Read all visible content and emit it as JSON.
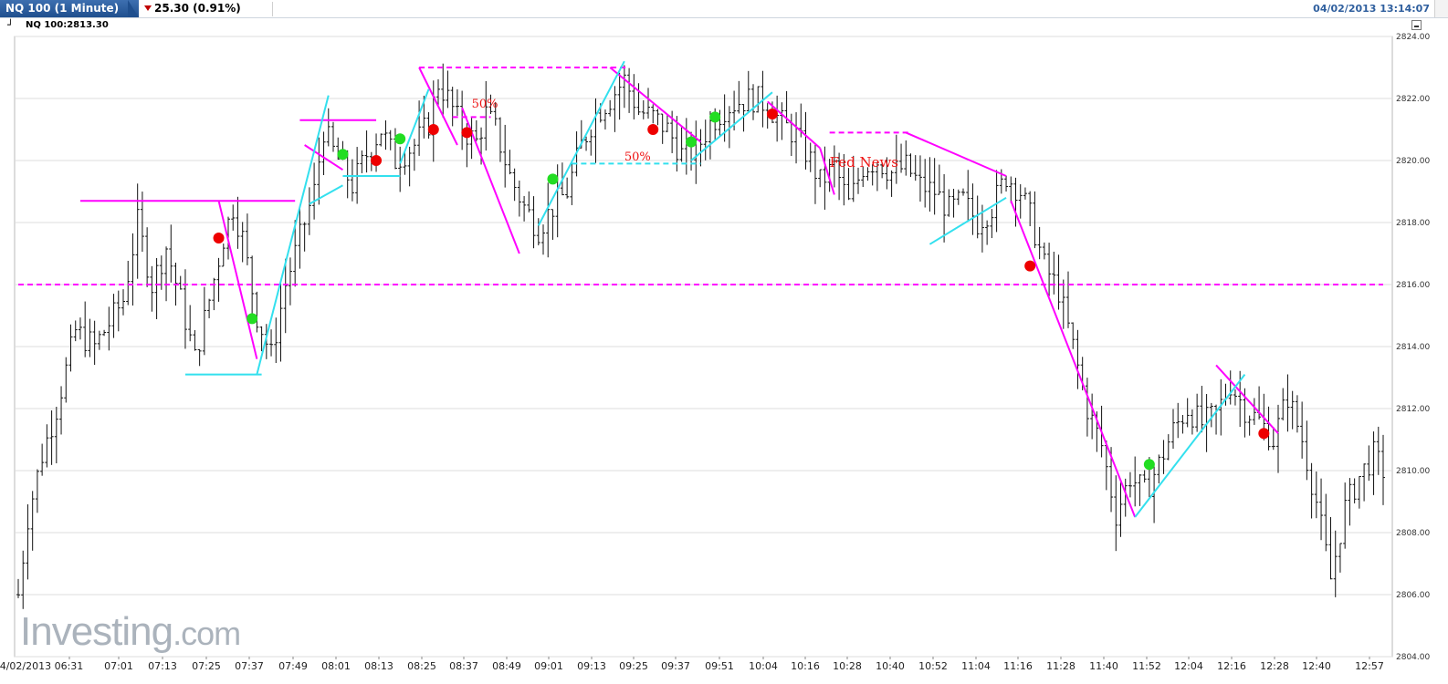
{
  "header": {
    "symbol_tab": "NQ 100 (1 Minute)",
    "change_text": "25.30 (0.91%)",
    "change_direction_color": "#c00000",
    "timestamp": "04/02/2013 13:14:07"
  },
  "subheader": {
    "quote_label": "NQ 100:2813.30"
  },
  "logo": {
    "word": "Investing",
    "suffix": ".com"
  },
  "chart_data": {
    "type": "ohlc",
    "instrument": "NQ 100",
    "interval": "1 Minute",
    "ylim": [
      2804,
      2824
    ],
    "y_ticks": [
      "2804.00",
      "2806.00",
      "2808.00",
      "2810.00",
      "2812.00",
      "2814.00",
      "2816.00",
      "2818.00",
      "2820.00",
      "2822.00",
      "2824.00"
    ],
    "x_tick_labels": [
      "04/02/2013 06:31",
      "07:01",
      "07:13",
      "07:25",
      "07:37",
      "07:49",
      "08:01",
      "08:13",
      "08:25",
      "08:37",
      "08:49",
      "09:01",
      "09:13",
      "09:25",
      "09:37",
      "09:51",
      "10:04",
      "10:16",
      "10:28",
      "10:40",
      "10:52",
      "11:04",
      "11:16",
      "11:28",
      "11:40",
      "11:52",
      "12:04",
      "12:16",
      "12:28",
      "12:40",
      "12:57"
    ],
    "grid": true,
    "price_path": [
      {
        "t": 0,
        "p": 2806.0
      },
      {
        "t": 2,
        "p": 2808.5
      },
      {
        "t": 5,
        "p": 2810.5
      },
      {
        "t": 8,
        "p": 2812.0
      },
      {
        "t": 12,
        "p": 2814.5
      },
      {
        "t": 16,
        "p": 2814.0
      },
      {
        "t": 22,
        "p": 2815.5
      },
      {
        "t": 25,
        "p": 2818.0
      },
      {
        "t": 28,
        "p": 2816.0
      },
      {
        "t": 31,
        "p": 2817.2
      },
      {
        "t": 34,
        "p": 2815.5
      },
      {
        "t": 37,
        "p": 2813.6
      },
      {
        "t": 40,
        "p": 2815.5
      },
      {
        "t": 43,
        "p": 2817.5
      },
      {
        "t": 45,
        "p": 2818.5
      },
      {
        "t": 47,
        "p": 2817.5
      },
      {
        "t": 50,
        "p": 2815.0
      },
      {
        "t": 53,
        "p": 2813.7
      },
      {
        "t": 56,
        "p": 2816.0
      },
      {
        "t": 59,
        "p": 2817.5
      },
      {
        "t": 62,
        "p": 2819.0
      },
      {
        "t": 64,
        "p": 2821.0
      },
      {
        "t": 66,
        "p": 2820.3
      },
      {
        "t": 70,
        "p": 2819.2
      },
      {
        "t": 73,
        "p": 2820.2
      },
      {
        "t": 76,
        "p": 2821.0
      },
      {
        "t": 79,
        "p": 2820.0
      },
      {
        "t": 83,
        "p": 2820.5
      },
      {
        "t": 86,
        "p": 2821.2
      },
      {
        "t": 88,
        "p": 2822.5
      },
      {
        "t": 90,
        "p": 2822.0
      },
      {
        "t": 93,
        "p": 2821.0
      },
      {
        "t": 96,
        "p": 2820.6
      },
      {
        "t": 98,
        "p": 2821.5
      },
      {
        "t": 100,
        "p": 2821.0
      },
      {
        "t": 103,
        "p": 2819.5
      },
      {
        "t": 106,
        "p": 2818.5
      },
      {
        "t": 109,
        "p": 2817.8
      },
      {
        "t": 112,
        "p": 2818.5
      },
      {
        "t": 115,
        "p": 2819.0
      },
      {
        "t": 118,
        "p": 2820.5
      },
      {
        "t": 121,
        "p": 2821.5
      },
      {
        "t": 124,
        "p": 2822.0
      },
      {
        "t": 127,
        "p": 2822.6
      },
      {
        "t": 130,
        "p": 2821.6
      },
      {
        "t": 133,
        "p": 2821.4
      },
      {
        "t": 136,
        "p": 2821.0
      },
      {
        "t": 139,
        "p": 2820.2
      },
      {
        "t": 142,
        "p": 2820.3
      },
      {
        "t": 145,
        "p": 2821.2
      },
      {
        "t": 148,
        "p": 2821.7
      },
      {
        "t": 151,
        "p": 2821.9
      },
      {
        "t": 154,
        "p": 2822.0
      },
      {
        "t": 157,
        "p": 2821.8
      },
      {
        "t": 160,
        "p": 2821.2
      },
      {
        "t": 163,
        "p": 2820.8
      },
      {
        "t": 166,
        "p": 2820.0
      },
      {
        "t": 168,
        "p": 2819.3
      },
      {
        "t": 171,
        "p": 2819.8
      },
      {
        "t": 174,
        "p": 2818.6
      },
      {
        "t": 177,
        "p": 2819.8
      },
      {
        "t": 180,
        "p": 2820.0
      },
      {
        "t": 183,
        "p": 2819.6
      },
      {
        "t": 186,
        "p": 2819.8
      },
      {
        "t": 189,
        "p": 2819.2
      },
      {
        "t": 192,
        "p": 2819.0
      },
      {
        "t": 195,
        "p": 2818.4
      },
      {
        "t": 198,
        "p": 2818.7
      },
      {
        "t": 201,
        "p": 2818.0
      },
      {
        "t": 204,
        "p": 2818.5
      },
      {
        "t": 207,
        "p": 2819.5
      },
      {
        "t": 210,
        "p": 2819.0
      },
      {
        "t": 212,
        "p": 2818.2
      },
      {
        "t": 215,
        "p": 2816.6
      },
      {
        "t": 218,
        "p": 2815.8
      },
      {
        "t": 221,
        "p": 2814.0
      },
      {
        "t": 224,
        "p": 2812.0
      },
      {
        "t": 227,
        "p": 2810.8
      },
      {
        "t": 230,
        "p": 2808.6
      },
      {
        "t": 233,
        "p": 2809.8
      },
      {
        "t": 236,
        "p": 2809.3
      },
      {
        "t": 239,
        "p": 2810.2
      },
      {
        "t": 242,
        "p": 2811.3
      },
      {
        "t": 245,
        "p": 2812.0
      },
      {
        "t": 248,
        "p": 2811.5
      },
      {
        "t": 251,
        "p": 2811.8
      },
      {
        "t": 254,
        "p": 2812.8
      },
      {
        "t": 257,
        "p": 2812.0
      },
      {
        "t": 260,
        "p": 2811.6
      },
      {
        "t": 263,
        "p": 2811.0
      },
      {
        "t": 266,
        "p": 2812.4
      },
      {
        "t": 269,
        "p": 2811.0
      },
      {
        "t": 272,
        "p": 2809.0
      },
      {
        "t": 275,
        "p": 2806.5
      },
      {
        "t": 278,
        "p": 2808.8
      },
      {
        "t": 281,
        "p": 2809.8
      },
      {
        "t": 284,
        "p": 2810.5
      },
      {
        "t": 286,
        "p": 2810.0
      }
    ],
    "series": [
      {
        "name": "Magenta trendlines",
        "color": "#ff00ff",
        "segments": [
          {
            "from": {
              "t": 13,
              "y": 2818.7
            },
            "to": {
              "t": 58,
              "y": 2818.7
            }
          },
          {
            "from": {
              "t": 42,
              "y": 2818.7
            },
            "to": {
              "t": 50,
              "y": 2813.6
            }
          },
          {
            "from": {
              "t": 60,
              "y": 2820.5
            },
            "to": {
              "t": 68,
              "y": 2819.7
            }
          },
          {
            "from": {
              "t": 59,
              "y": 2821.3
            },
            "to": {
              "t": 75,
              "y": 2821.3
            }
          },
          {
            "from": {
              "t": 84,
              "y": 2823.0
            },
            "to": {
              "t": 92,
              "y": 2820.5
            }
          },
          {
            "from": {
              "t": 93,
              "y": 2821.7
            },
            "to": {
              "t": 105,
              "y": 2817.0
            }
          },
          {
            "from": {
              "t": 124,
              "y": 2823.0
            },
            "to": {
              "t": 143,
              "y": 2820.6
            }
          },
          {
            "from": {
              "t": 157,
              "y": 2821.9
            },
            "to": {
              "t": 168,
              "y": 2820.4
            }
          },
          {
            "from": {
              "t": 168,
              "y": 2820.4
            },
            "to": {
              "t": 171,
              "y": 2818.9
            }
          },
          {
            "from": {
              "t": 186,
              "y": 2820.9
            },
            "to": {
              "t": 207,
              "y": 2819.5
            }
          },
          {
            "from": {
              "t": 208,
              "y": 2818.7
            },
            "to": {
              "t": 234,
              "y": 2808.5
            }
          },
          {
            "from": {
              "t": 251,
              "y": 2813.4
            },
            "to": {
              "t": 264,
              "y": 2811.2
            }
          }
        ]
      },
      {
        "name": "Cyan trendlines",
        "color": "#33e0ee",
        "segments": [
          {
            "from": {
              "t": 35,
              "y": 2813.1
            },
            "to": {
              "t": 51,
              "y": 2813.1
            }
          },
          {
            "from": {
              "t": 50,
              "y": 2813.1
            },
            "to": {
              "t": 65,
              "y": 2822.1
            }
          },
          {
            "from": {
              "t": 61,
              "y": 2818.6
            },
            "to": {
              "t": 68,
              "y": 2819.2
            }
          },
          {
            "from": {
              "t": 68,
              "y": 2819.5
            },
            "to": {
              "t": 80,
              "y": 2819.5
            }
          },
          {
            "from": {
              "t": 80,
              "y": 2819.9
            },
            "to": {
              "t": 86,
              "y": 2822.3
            }
          },
          {
            "from": {
              "t": 109,
              "y": 2817.9
            },
            "to": {
              "t": 127,
              "y": 2823.2
            }
          },
          {
            "from": {
              "t": 141,
              "y": 2820.0
            },
            "to": {
              "t": 158,
              "y": 2822.2
            }
          },
          {
            "from": {
              "t": 191,
              "y": 2817.3
            },
            "to": {
              "t": 207,
              "y": 2818.8
            }
          },
          {
            "from": {
              "t": 234,
              "y": 2808.5
            },
            "to": {
              "t": 257,
              "y": 2813.1
            }
          }
        ]
      }
    ],
    "dashed_levels": [
      {
        "y": 2816.0,
        "from_t": 0,
        "to_t": 286,
        "color": "#ff00ff"
      },
      {
        "y": 2823.0,
        "from_t": 84,
        "to_t": 128,
        "color": "#ff00ff"
      },
      {
        "y": 2821.4,
        "from_t": 91,
        "to_t": 99,
        "color": "#ff00ff"
      },
      {
        "y": 2819.9,
        "from_t": 116,
        "to_t": 143,
        "color": "#33e0ee"
      },
      {
        "y": 2820.9,
        "from_t": 170,
        "to_t": 187,
        "color": "#ff00ff"
      }
    ],
    "markers": [
      {
        "t": 42,
        "y": 2817.5,
        "color": "red"
      },
      {
        "t": 49,
        "y": 2814.9,
        "color": "green"
      },
      {
        "t": 68,
        "y": 2820.2,
        "color": "green"
      },
      {
        "t": 75,
        "y": 2820.0,
        "color": "red"
      },
      {
        "t": 80,
        "y": 2820.7,
        "color": "green"
      },
      {
        "t": 87,
        "y": 2821.0,
        "color": "red"
      },
      {
        "t": 94,
        "y": 2820.9,
        "color": "red"
      },
      {
        "t": 112,
        "y": 2819.4,
        "color": "green"
      },
      {
        "t": 133,
        "y": 2821.0,
        "color": "red"
      },
      {
        "t": 141,
        "y": 2820.6,
        "color": "green"
      },
      {
        "t": 146,
        "y": 2821.4,
        "color": "green"
      },
      {
        "t": 158,
        "y": 2821.5,
        "color": "red"
      },
      {
        "t": 212,
        "y": 2816.6,
        "color": "red"
      },
      {
        "t": 237,
        "y": 2810.2,
        "color": "green"
      },
      {
        "t": 261,
        "y": 2811.2,
        "color": "red"
      }
    ],
    "annotations": [
      {
        "text": "50%",
        "t": 95,
        "y": 2821.7
      },
      {
        "text": "50%",
        "t": 127,
        "y": 2820.0
      },
      {
        "text": "Fed News",
        "t": 170,
        "y": 2819.8
      }
    ]
  }
}
